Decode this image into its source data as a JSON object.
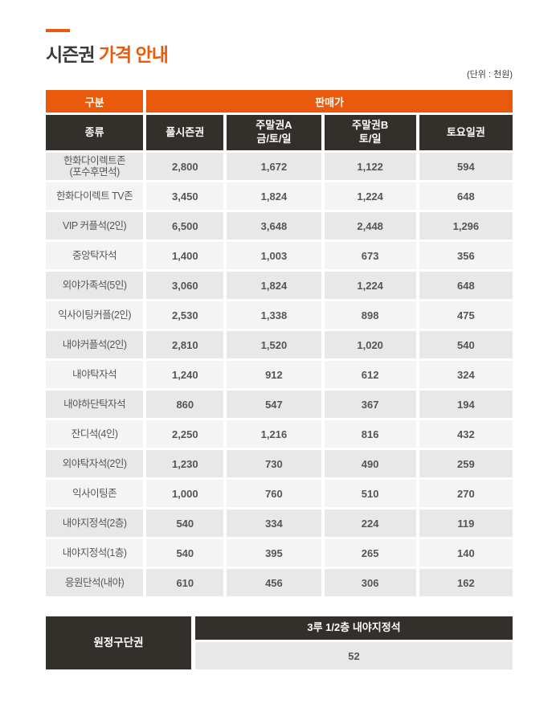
{
  "page": {
    "title_main": "시즌권",
    "title_accent": "가격 안내",
    "unit_note": "(단위 : 천원)"
  },
  "colors": {
    "accent_orange": "#EA5A0C",
    "header_dark": "#33302B",
    "row_gray": "#E9E8E8",
    "row_light": "#F5F4F4"
  },
  "table": {
    "group_header": {
      "category": "구분",
      "price": "판매가"
    },
    "columns": [
      "종류",
      "풀시즌권",
      "주말권A\n금/토/일",
      "주말권B\n토/일",
      "토요일권"
    ],
    "rows": [
      {
        "name": "한화다이렉트존\n(포수후면석)",
        "values": [
          "2,800",
          "1,672",
          "1,122",
          "594"
        ]
      },
      {
        "name": "한화다이렉트 TV존",
        "values": [
          "3,450",
          "1,824",
          "1,224",
          "648"
        ]
      },
      {
        "name": "VIP 커플석(2인)",
        "values": [
          "6,500",
          "3,648",
          "2,448",
          "1,296"
        ]
      },
      {
        "name": "중앙탁자석",
        "values": [
          "1,400",
          "1,003",
          "673",
          "356"
        ]
      },
      {
        "name": "외야가족석(5인)",
        "values": [
          "3,060",
          "1,824",
          "1,224",
          "648"
        ]
      },
      {
        "name": "익사이팅커플(2인)",
        "values": [
          "2,530",
          "1,338",
          "898",
          "475"
        ]
      },
      {
        "name": "내야커플석(2인)",
        "values": [
          "2,810",
          "1,520",
          "1,020",
          "540"
        ]
      },
      {
        "name": "내야탁자석",
        "values": [
          "1,240",
          "912",
          "612",
          "324"
        ]
      },
      {
        "name": "내야하단탁자석",
        "values": [
          "860",
          "547",
          "367",
          "194"
        ]
      },
      {
        "name": "잔디석(4인)",
        "values": [
          "2,250",
          "1,216",
          "816",
          "432"
        ]
      },
      {
        "name": "외야탁자석(2인)",
        "values": [
          "1,230",
          "730",
          "490",
          "259"
        ]
      },
      {
        "name": "익사이팅존",
        "values": [
          "1,000",
          "760",
          "510",
          "270"
        ]
      },
      {
        "name": "내야지정석(2층)",
        "values": [
          "540",
          "334",
          "224",
          "119"
        ]
      },
      {
        "name": "내야지정석(1층)",
        "values": [
          "540",
          "395",
          "265",
          "140"
        ]
      },
      {
        "name": "응원단석(내야)",
        "values": [
          "610",
          "456",
          "306",
          "162"
        ]
      }
    ]
  },
  "away_section": {
    "label": "원정구단권",
    "seat": "3루 1/2층 내야지정석",
    "price": "52"
  }
}
